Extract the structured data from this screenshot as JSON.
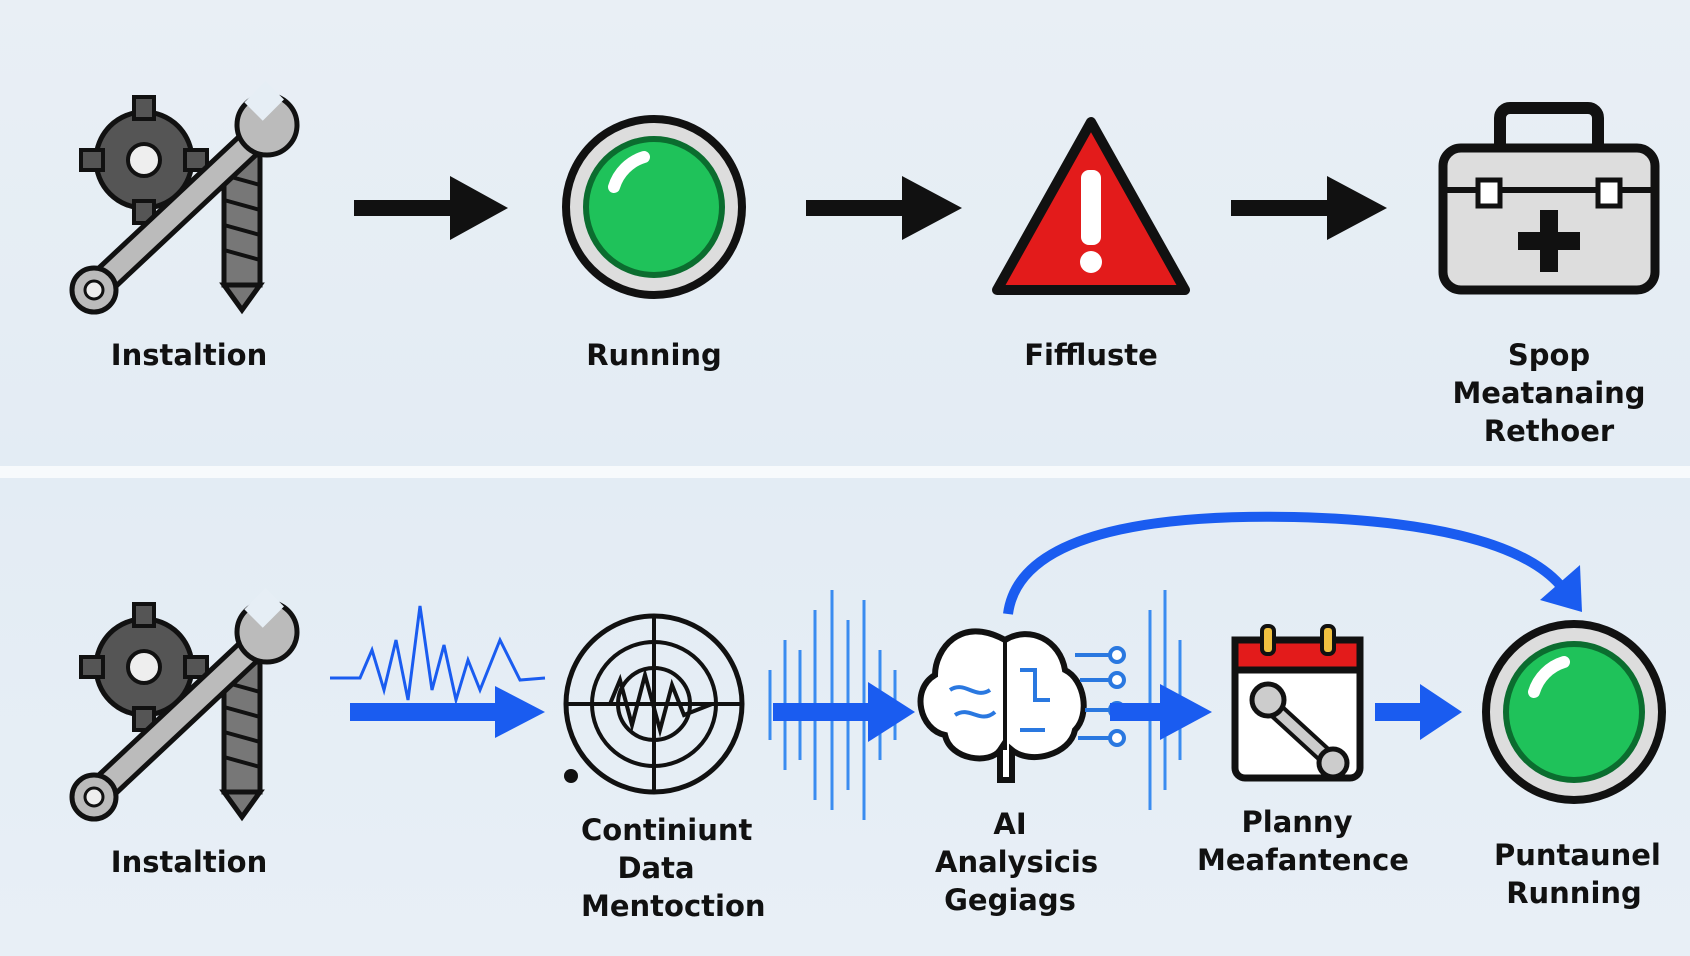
{
  "top_row": {
    "steps": [
      {
        "label": "Instaltion",
        "icon": "gear-wrench-screw-icon"
      },
      {
        "label": "Running",
        "icon": "green-status-light-icon"
      },
      {
        "label": "Fiffluste",
        "icon": "warning-triangle-icon"
      },
      {
        "label": "Spop Meatanaing Rethoer",
        "icon": "toolbox-icon"
      }
    ]
  },
  "bottom_row": {
    "steps": [
      {
        "label": "Instaltion",
        "icon": "gear-wrench-screw-icon"
      },
      {
        "label": "Continiunt Data Mentoction",
        "icon": "radar-sensor-icon"
      },
      {
        "label": "AI Analysicis Gegiags",
        "icon": "brain-circuit-icon"
      },
      {
        "label": "Planny Meafantence",
        "icon": "calendar-wrench-icon"
      },
      {
        "label": "Puntaunel Running",
        "icon": "green-status-light-icon"
      }
    ]
  },
  "colors": {
    "arrow_black": "#111111",
    "arrow_blue": "#1a5cf0",
    "green": "#1fc25a",
    "red": "#e31b1b",
    "background": "#e6eef5"
  }
}
